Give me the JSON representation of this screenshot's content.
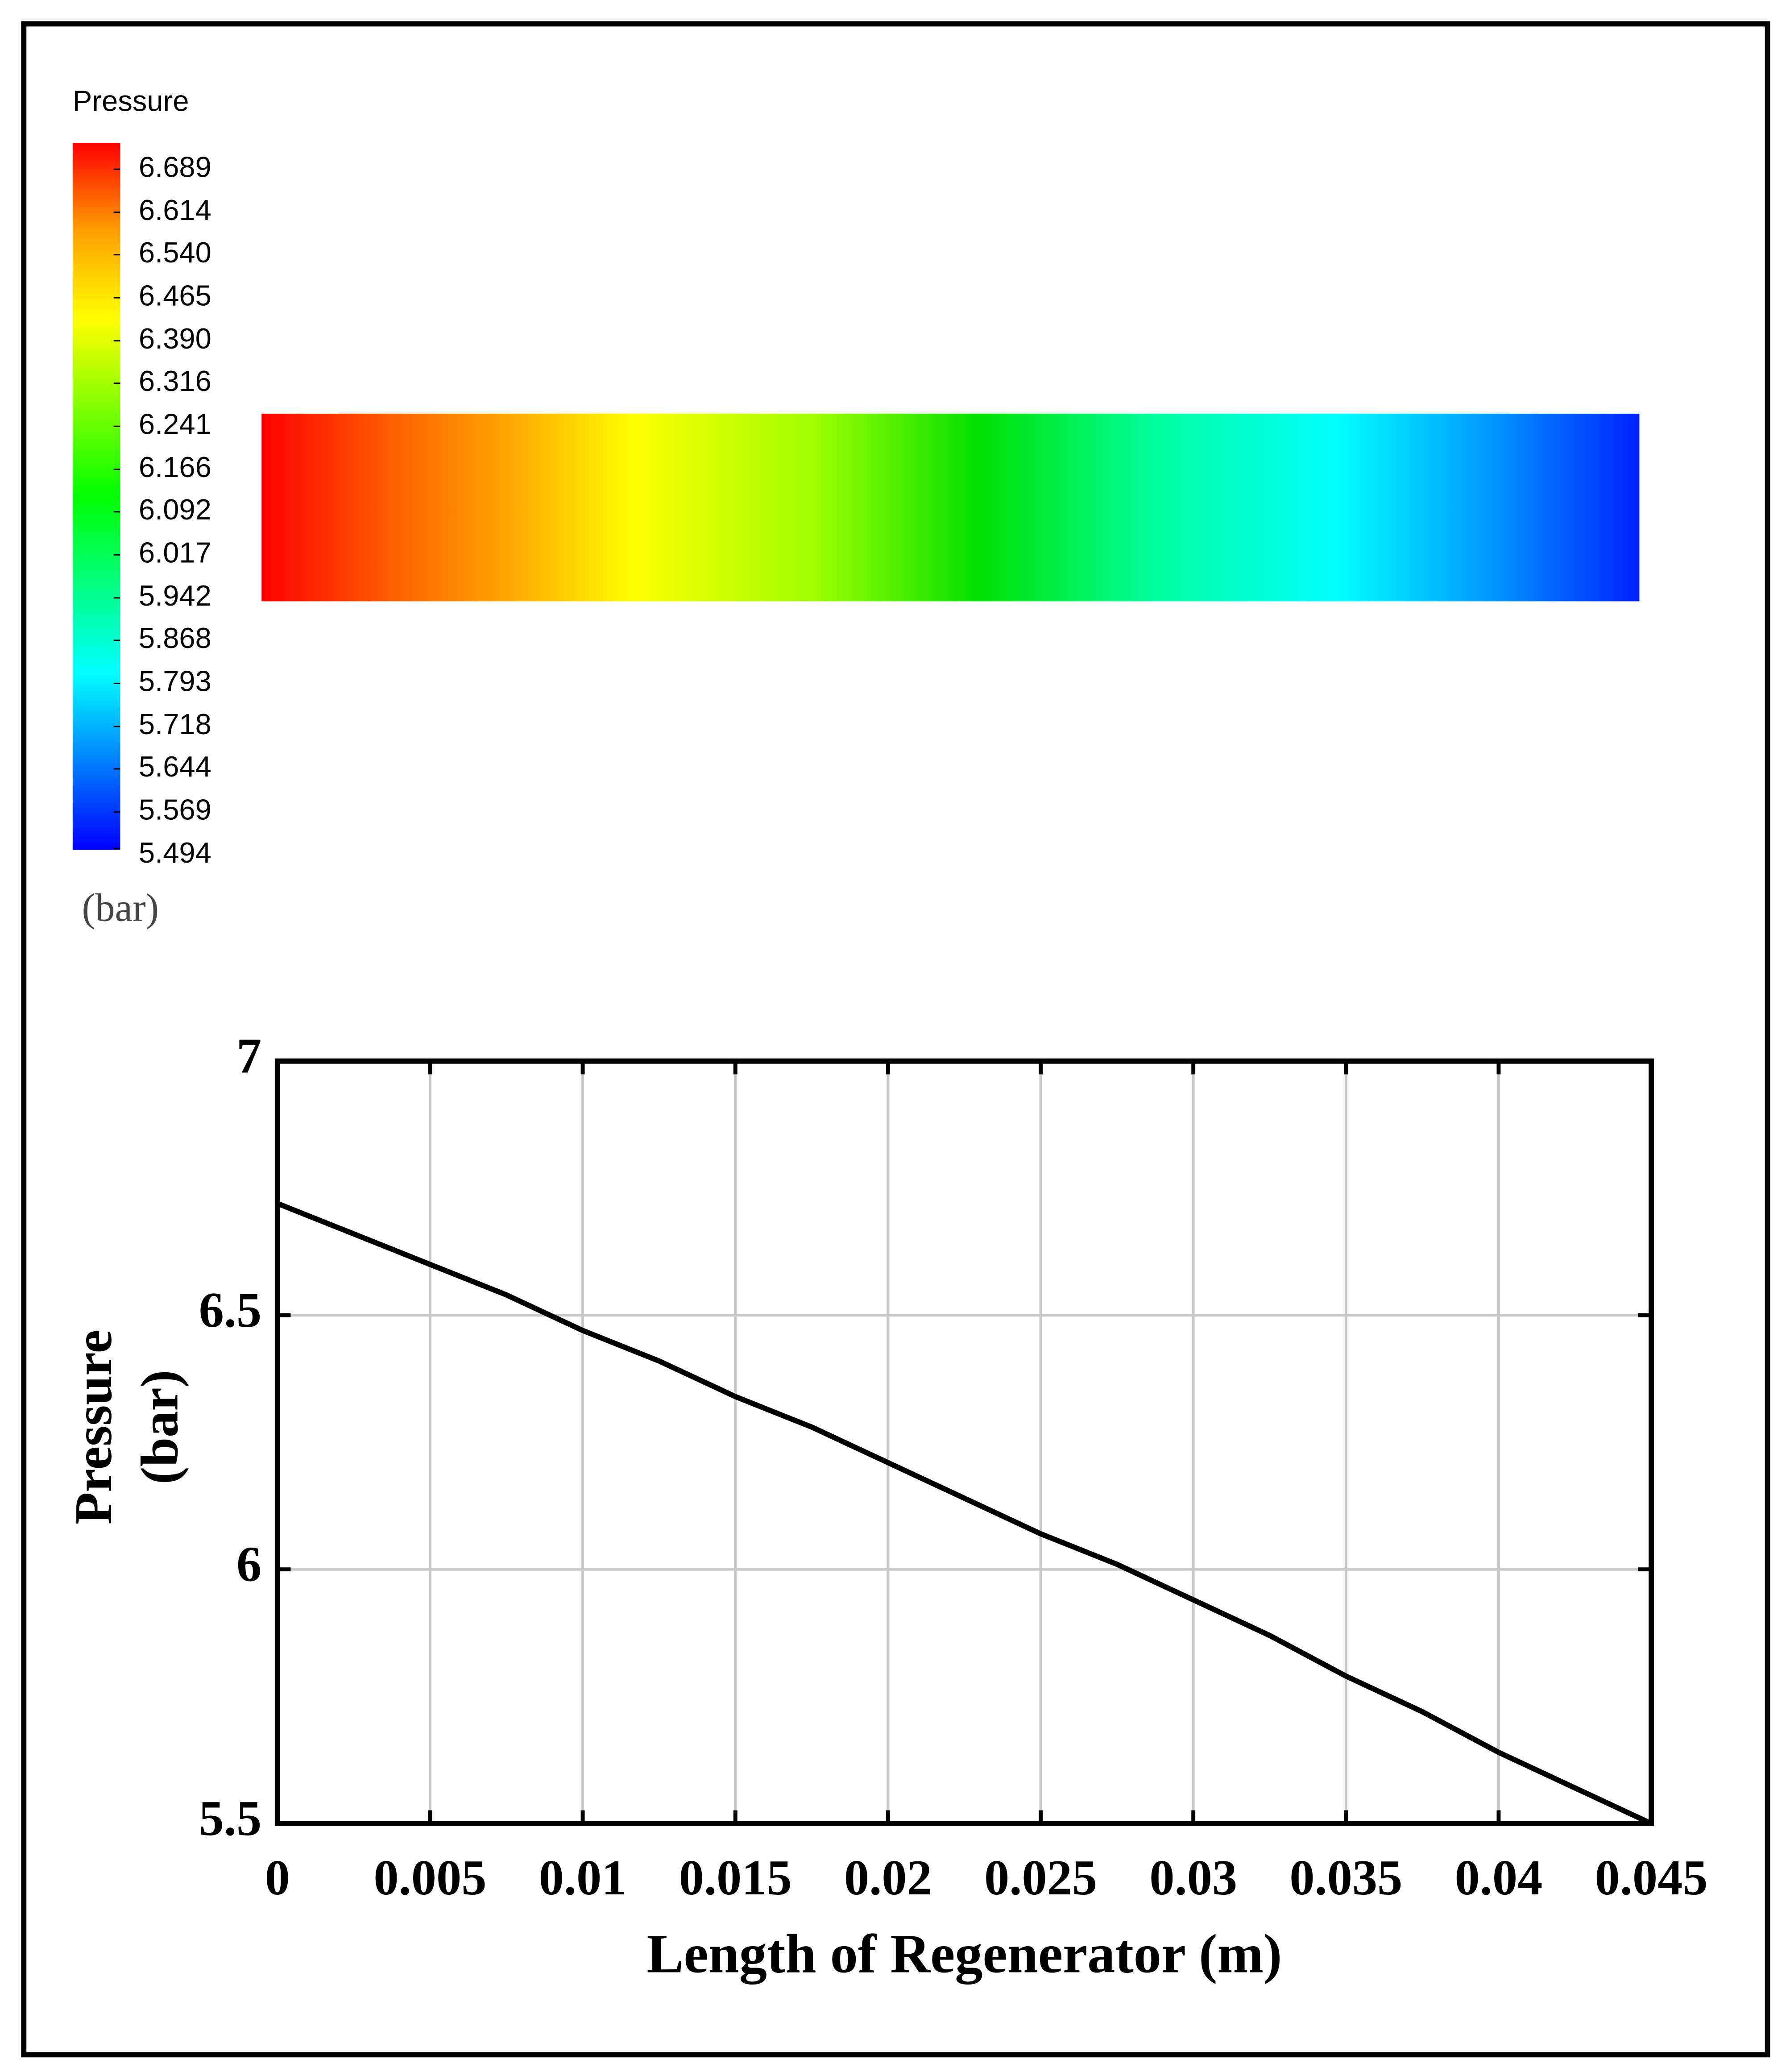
{
  "chart_data": [
    {
      "type": "contour",
      "title": "Pressure",
      "unit": "(bar)",
      "colorbar_ticks": [
        6.689,
        6.614,
        {
          "value": 6.54,
          "label": "6.540"
        },
        6.465,
        {
          "value": 6.39,
          "label": "6.390"
        },
        6.316,
        6.241,
        6.166,
        6.092,
        6.017,
        5.942,
        5.868,
        5.793,
        5.718,
        5.644,
        5.569,
        5.494
      ],
      "colormap": [
        "#0000ff",
        "#0080ff",
        "#00ffff",
        "#00ff80",
        "#00ff00",
        "#80ff00",
        "#ffff00",
        "#ffa000",
        "#ff0000"
      ]
    },
    {
      "type": "line",
      "xlabel": "Length of Regenerator (m)",
      "ylabel": [
        "Pressure",
        "(bar)"
      ],
      "x": [
        0,
        0.0025,
        0.005,
        0.0075,
        0.01,
        0.0125,
        0.015,
        0.0175,
        0.02,
        0.0225,
        0.025,
        0.0275,
        0.03,
        0.0325,
        0.035,
        0.0375,
        0.04,
        0.0425,
        0.045
      ],
      "series": [
        {
          "name": "Pressure",
          "color": "#000000",
          "values": [
            6.72,
            6.66,
            6.6,
            6.54,
            6.47,
            6.41,
            6.34,
            6.28,
            6.21,
            6.14,
            6.07,
            6.01,
            5.94,
            5.87,
            5.79,
            5.72,
            5.64,
            5.57,
            5.5
          ]
        }
      ],
      "xlim": [
        0,
        0.045
      ],
      "ylim": [
        5.5,
        7
      ],
      "xticks": [
        0,
        0.005,
        0.01,
        0.015,
        0.02,
        0.025,
        0.03,
        0.035,
        0.04,
        0.045
      ],
      "yticks": [
        5.5,
        6,
        6.5,
        7
      ],
      "grid": true
    }
  ]
}
